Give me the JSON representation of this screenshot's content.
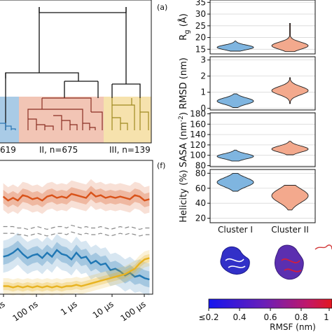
{
  "panel_labels": {
    "a": "(a)",
    "f": "(f)"
  },
  "dendrogram": {
    "cluster_labels": [
      "619",
      "II, n=675",
      "III, n=139"
    ],
    "band_colors": [
      "#a9cbe6",
      "#f2c5b5",
      "#f6e2ad"
    ],
    "branch_colors": [
      "#2a76b5",
      "#8a2f23",
      "#9f8a20"
    ]
  },
  "timeseries": {
    "x_tick_labels": [
      "ns",
      "100 ns",
      "1 µs",
      "10 µs",
      "100 µs"
    ],
    "colors": {
      "orange": "#d95219",
      "blue": "#1f77b4",
      "yellow": "#e8b321",
      "gray": "#8a8a8a"
    },
    "chart_data": {
      "type": "line",
      "x": [
        0.2,
        0.5,
        0.8,
        1.1,
        1.4,
        1.7,
        2.0,
        2.3,
        2.6,
        2.9,
        3.2,
        3.5,
        3.8,
        4.1,
        4.4,
        4.7,
        5.0,
        5.3,
        5.6,
        5.9,
        6.2,
        6.5,
        6.8,
        7.1,
        7.4,
        7.7,
        8.0,
        8.3,
        8.6,
        8.9,
        9.2
      ],
      "series": [
        {
          "color": "orange",
          "values": [
            0.73,
            0.7,
            0.72,
            0.7,
            0.74,
            0.73,
            0.71,
            0.72,
            0.7,
            0.73,
            0.74,
            0.72,
            0.73,
            0.72,
            0.75,
            0.74,
            0.73,
            0.72,
            0.76,
            0.73,
            0.74,
            0.72,
            0.73,
            0.72,
            0.73,
            0.72,
            0.71,
            0.74,
            0.73,
            0.7,
            0.71
          ],
          "band": 0.05
        },
        {
          "color": "blue",
          "values": [
            0.28,
            0.29,
            0.31,
            0.34,
            0.3,
            0.27,
            0.29,
            0.3,
            0.27,
            0.31,
            0.28,
            0.33,
            0.3,
            0.29,
            0.26,
            0.31,
            0.27,
            0.28,
            0.23,
            0.25,
            0.22,
            0.23,
            0.18,
            0.19,
            0.17,
            0.14,
            0.16,
            0.13,
            0.14,
            0.12,
            0.11
          ],
          "band": 0.06
        },
        {
          "color": "yellow",
          "values": [
            0.06,
            0.06,
            0.05,
            0.06,
            0.05,
            0.06,
            0.05,
            0.06,
            0.05,
            0.06,
            0.05,
            0.06,
            0.05,
            0.06,
            0.06,
            0.07,
            0.06,
            0.07,
            0.08,
            0.09,
            0.1,
            0.11,
            0.12,
            0.13,
            0.14,
            0.15,
            0.17,
            0.19,
            0.23,
            0.26,
            0.27
          ],
          "band": 0.03
        },
        {
          "color": "gray",
          "values": [
            0.48,
            0.48,
            0.48,
            0.47,
            0.47,
            0.46,
            0.47,
            0.48,
            0.47,
            0.46,
            0.47,
            0.48,
            0.48,
            0.47,
            0.49,
            0.48,
            0.47,
            0.48,
            0.47,
            0.47,
            0.48,
            0.47,
            0.46,
            0.47,
            0.48,
            0.47,
            0.48,
            0.47,
            0.46,
            0.47,
            0.47
          ],
          "dashed": true
        }
      ]
    }
  },
  "violins": {
    "colors": {
      "cluster1": "#7fb5e0",
      "cluster2": "#f3a98d"
    },
    "x_labels": [
      "Cluster I",
      "Cluster II"
    ],
    "panels": [
      {
        "ylabel_main": "R",
        "ylabel_sub": "g",
        "ylabel_unit": " (Å)",
        "ticks": [
          15,
          20,
          25,
          30,
          35
        ],
        "ylim": [
          13,
          36
        ],
        "chart_data": {
          "type": "violin",
          "distributions": [
            {
              "median": 15.8,
              "min": 14.2,
              "max": 18.5,
              "spread": 1.0
            },
            {
              "median": 16.5,
              "min": 14.0,
              "max": 26.0,
              "spread": 1.5
            }
          ]
        }
      },
      {
        "ylabel_main": "RMSD (nm)",
        "ticks": [
          0,
          1,
          2,
          3
        ],
        "ylim": [
          -0.1,
          3.2
        ],
        "chart_data": {
          "type": "violin",
          "distributions": [
            {
              "median": 0.45,
              "min": 0.05,
              "max": 0.9,
              "spread": 0.2
            },
            {
              "median": 1.1,
              "min": 0.3,
              "max": 1.9,
              "spread": 0.25
            }
          ]
        }
      },
      {
        "ylabel_main": "SASA (nm",
        "ylabel_sup": "-2",
        "ylabel_unit": ")",
        "ticks": [
          80,
          100,
          120,
          140,
          160,
          180
        ],
        "ylim": [
          78,
          182
        ],
        "chart_data": {
          "type": "violin",
          "distributions": [
            {
              "median": 98,
              "min": 89,
              "max": 110,
              "spread": 5
            },
            {
              "median": 112,
              "min": 101,
              "max": 127,
              "spread": 6
            }
          ]
        }
      },
      {
        "ylabel_main": "Helicity (%)",
        "ticks": [
          20,
          40,
          60,
          80
        ],
        "ylim": [
          14,
          85
        ],
        "chart_data": {
          "type": "violin",
          "distributions": [
            {
              "median": 68,
              "min": 56,
              "max": 80,
              "spread": 6
            },
            {
              "median": 50,
              "min": 31,
              "max": 64,
              "spread": 9
            }
          ]
        }
      }
    ]
  },
  "colorbar": {
    "tick_labels": [
      "≤0.2",
      "0.4",
      "0.6",
      "0.8",
      "1"
    ],
    "label": "RMSF (nm)"
  }
}
